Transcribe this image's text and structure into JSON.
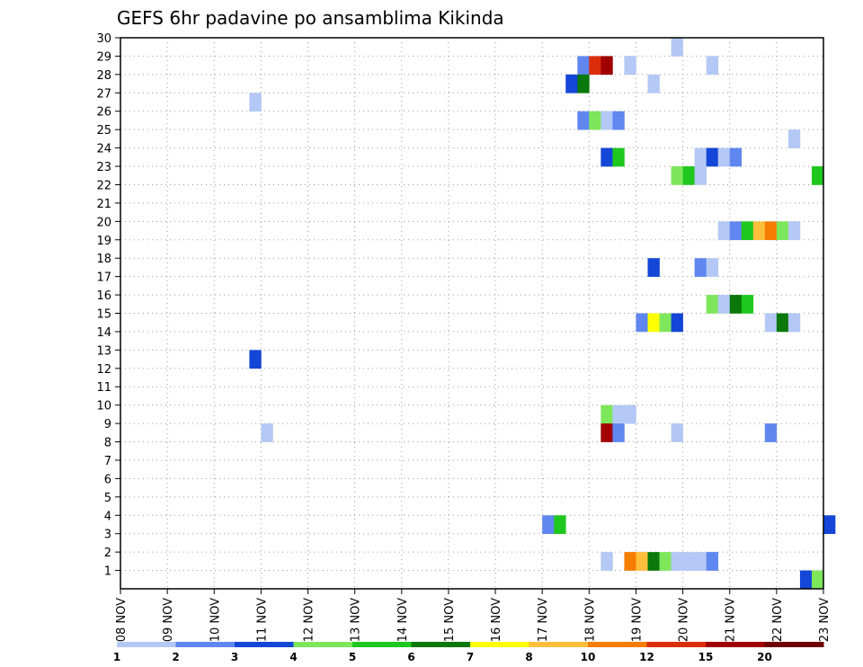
{
  "chart_data": {
    "type": "heatmap",
    "title": "GEFS 6hr padavine po ansamblima Kikinda",
    "xlabel": "",
    "ylabel": "",
    "x_tick_labels": [
      "08 NOV",
      "09 NOV",
      "10 NOV",
      "11 NOV",
      "12 NOV",
      "13 NOV",
      "14 NOV",
      "15 NOV",
      "16 NOV",
      "17 NOV",
      "18 NOV",
      "19 NOV",
      "20 NOV",
      "21 NOV",
      "22 NOV",
      "23 NOV"
    ],
    "x_range_days": [
      0,
      15
    ],
    "y_range": [
      0,
      30
    ],
    "y_ticks": [
      1,
      2,
      3,
      4,
      5,
      6,
      7,
      8,
      9,
      10,
      11,
      12,
      13,
      14,
      15,
      16,
      17,
      18,
      19,
      20,
      21,
      22,
      23,
      24,
      25,
      26,
      27,
      28,
      29,
      30
    ],
    "grid": true,
    "color_scale": {
      "labels": [
        "1",
        "2",
        "3",
        "4",
        "5",
        "6",
        "7",
        "8",
        "10",
        "12",
        "15",
        "20"
      ],
      "colors": [
        "#b4c8f5",
        "#5f87ef",
        "#1446d7",
        "#7ee65a",
        "#1ec81e",
        "#0a780a",
        "#ffff00",
        "#ffbe3c",
        "#f57d00",
        "#dc2d0a",
        "#a00000",
        "#6e0000"
      ]
    },
    "cells": [
      {
        "m": 30,
        "x": 11.75,
        "c": 0
      },
      {
        "m": 29,
        "x": 9.75,
        "c": 1
      },
      {
        "m": 29,
        "x": 10.0,
        "c": 9
      },
      {
        "m": 29,
        "x": 10.25,
        "c": 10
      },
      {
        "m": 29,
        "x": 10.75,
        "c": 0
      },
      {
        "m": 29,
        "x": 12.5,
        "c": 0
      },
      {
        "m": 28,
        "x": 9.5,
        "c": 2
      },
      {
        "m": 28,
        "x": 9.75,
        "c": 5
      },
      {
        "m": 28,
        "x": 11.25,
        "c": 0
      },
      {
        "m": 27,
        "x": 2.75,
        "c": 0
      },
      {
        "m": 26,
        "x": 9.75,
        "c": 1
      },
      {
        "m": 26,
        "x": 10.0,
        "c": 3
      },
      {
        "m": 26,
        "x": 10.25,
        "c": 0
      },
      {
        "m": 26,
        "x": 10.5,
        "c": 1
      },
      {
        "m": 25,
        "x": 14.25,
        "c": 0
      },
      {
        "m": 24,
        "x": 10.25,
        "c": 2
      },
      {
        "m": 24,
        "x": 10.5,
        "c": 4
      },
      {
        "m": 24,
        "x": 12.25,
        "c": 0
      },
      {
        "m": 24,
        "x": 12.5,
        "c": 2
      },
      {
        "m": 24,
        "x": 12.75,
        "c": 0
      },
      {
        "m": 24,
        "x": 13.0,
        "c": 1
      },
      {
        "m": 23,
        "x": 11.75,
        "c": 3
      },
      {
        "m": 23,
        "x": 12.0,
        "c": 4
      },
      {
        "m": 23,
        "x": 12.25,
        "c": 0
      },
      {
        "m": 23,
        "x": 14.75,
        "c": 4
      },
      {
        "m": 20,
        "x": 12.75,
        "c": 0
      },
      {
        "m": 20,
        "x": 13.0,
        "c": 1
      },
      {
        "m": 20,
        "x": 13.25,
        "c": 4
      },
      {
        "m": 20,
        "x": 13.5,
        "c": 7
      },
      {
        "m": 20,
        "x": 13.75,
        "c": 8
      },
      {
        "m": 20,
        "x": 14.0,
        "c": 3
      },
      {
        "m": 20,
        "x": 14.25,
        "c": 0
      },
      {
        "m": 18,
        "x": 11.25,
        "c": 2
      },
      {
        "m": 18,
        "x": 12.25,
        "c": 1
      },
      {
        "m": 18,
        "x": 12.5,
        "c": 0
      },
      {
        "m": 16,
        "x": 12.5,
        "c": 3
      },
      {
        "m": 16,
        "x": 12.75,
        "c": 0
      },
      {
        "m": 16,
        "x": 13.0,
        "c": 5
      },
      {
        "m": 16,
        "x": 13.25,
        "c": 4
      },
      {
        "m": 15,
        "x": 11.0,
        "c": 1
      },
      {
        "m": 15,
        "x": 11.25,
        "c": 6
      },
      {
        "m": 15,
        "x": 11.5,
        "c": 3
      },
      {
        "m": 15,
        "x": 11.75,
        "c": 2
      },
      {
        "m": 15,
        "x": 13.75,
        "c": 0
      },
      {
        "m": 15,
        "x": 14.0,
        "c": 5
      },
      {
        "m": 15,
        "x": 14.25,
        "c": 0
      },
      {
        "m": 13,
        "x": 2.75,
        "c": 2
      },
      {
        "m": 10,
        "x": 10.25,
        "c": 3
      },
      {
        "m": 10,
        "x": 10.5,
        "c": 0
      },
      {
        "m": 10,
        "x": 10.75,
        "c": 0
      },
      {
        "m": 9,
        "x": 3.0,
        "c": 0
      },
      {
        "m": 9,
        "x": 10.25,
        "c": 10
      },
      {
        "m": 9,
        "x": 10.5,
        "c": 1
      },
      {
        "m": 9,
        "x": 11.75,
        "c": 0
      },
      {
        "m": 9,
        "x": 13.75,
        "c": 1
      },
      {
        "m": 4,
        "x": 9.0,
        "c": 1
      },
      {
        "m": 4,
        "x": 9.25,
        "c": 4
      },
      {
        "m": 4,
        "x": 15.0,
        "c": 2
      },
      {
        "m": 2,
        "x": 10.25,
        "c": 0
      },
      {
        "m": 2,
        "x": 10.75,
        "c": 8
      },
      {
        "m": 2,
        "x": 11.0,
        "c": 7
      },
      {
        "m": 2,
        "x": 11.25,
        "c": 5
      },
      {
        "m": 2,
        "x": 11.5,
        "c": 3
      },
      {
        "m": 2,
        "x": 11.75,
        "c": 0
      },
      {
        "m": 2,
        "x": 12.0,
        "c": 0
      },
      {
        "m": 2,
        "x": 12.25,
        "c": 0
      },
      {
        "m": 2,
        "x": 12.5,
        "c": 1
      },
      {
        "m": 1,
        "x": 14.5,
        "c": 2
      },
      {
        "m": 1,
        "x": 14.75,
        "c": 3
      }
    ]
  }
}
